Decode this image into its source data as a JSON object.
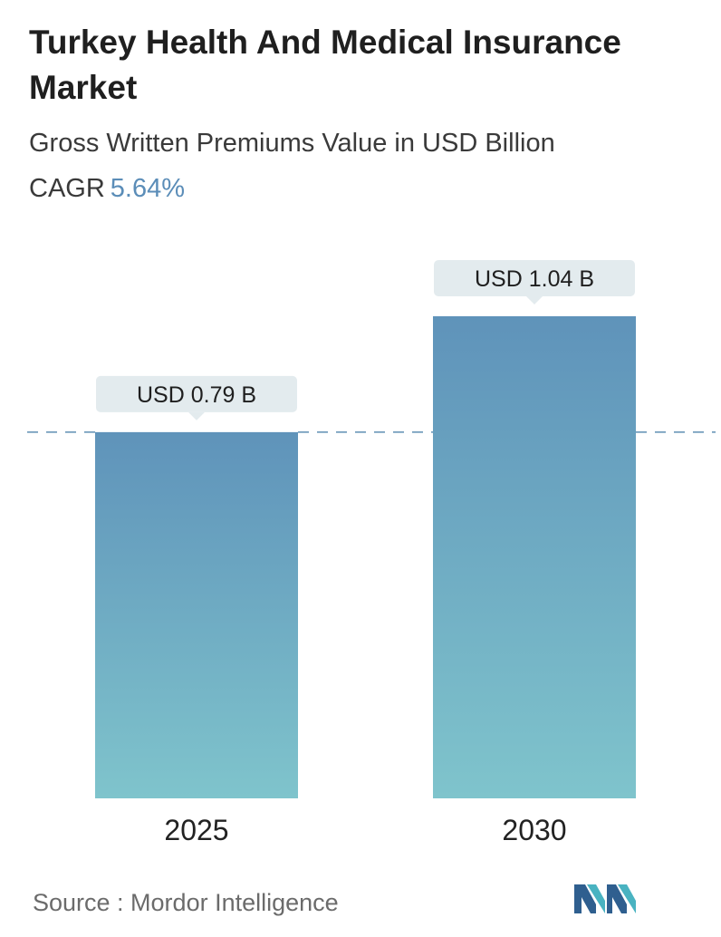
{
  "header": {
    "title": "Turkey Health And Medical Insurance Market",
    "subtitle": "Gross Written Premiums Value in USD Billion",
    "cagr_label": "CAGR",
    "cagr_value": "5.64%"
  },
  "chart_data": {
    "type": "bar",
    "categories": [
      "2025",
      "2030"
    ],
    "values": [
      0.79,
      1.04
    ],
    "value_labels": [
      "USD 0.79 B",
      "USD 1.04 B"
    ],
    "unit": "USD Billion",
    "ylim": [
      0,
      1.04
    ],
    "grid": false,
    "reference_line": "dashed line at first bar value",
    "colors": {
      "bar_top": "#5f93ba",
      "bar_bottom": "#7fc4cc",
      "label_bg": "#e3ebee",
      "dashed_line": "#5f8fb3"
    }
  },
  "footer": {
    "source": "Source :  Mordor Intelligence",
    "logo_icon": "mordor-intelligence-logo"
  }
}
